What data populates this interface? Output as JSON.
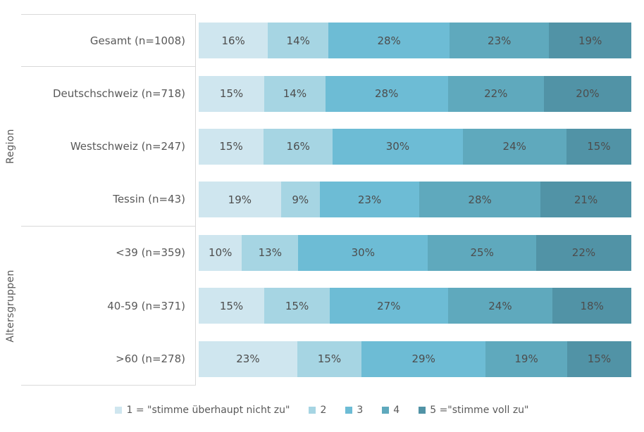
{
  "chart_data": {
    "type": "bar",
    "orientation": "horizontal",
    "stacked": true,
    "value_unit": "percent",
    "x_range": [
      0,
      100
    ],
    "grid": false,
    "legend_position": "bottom",
    "colors": [
      "#cfe6ef",
      "#a6d5e3",
      "#6dbcd5",
      "#5fa9bd",
      "#5193a6"
    ],
    "legend": [
      {
        "label": "1 = \"stimme überhaupt nicht zu\""
      },
      {
        "label": "2"
      },
      {
        "label": "3"
      },
      {
        "label": "4"
      },
      {
        "label": "5 =\"stimme voll zu\""
      }
    ],
    "groups": [
      {
        "label": "",
        "rows": [
          {
            "label": "Gesamt (n=1008)",
            "values": [
              16,
              14,
              28,
              23,
              19
            ],
            "labels": [
              "16%",
              "14%",
              "28%",
              "23%",
              "19%"
            ]
          }
        ]
      },
      {
        "label": "Region",
        "rows": [
          {
            "label": "Deutschschweiz (n=718)",
            "values": [
              15,
              14,
              28,
              22,
              20
            ],
            "labels": [
              "15%",
              "14%",
              "28%",
              "22%",
              "20%"
            ]
          },
          {
            "label": "Westschweiz (n=247)",
            "values": [
              15,
              16,
              30,
              24,
              15
            ],
            "labels": [
              "15%",
              "16%",
              "30%",
              "24%",
              "15%"
            ]
          },
          {
            "label": "Tessin (n=43)",
            "values": [
              19,
              9,
              23,
              28,
              21
            ],
            "labels": [
              "19%",
              "9%",
              "23%",
              "28%",
              "21%"
            ]
          }
        ]
      },
      {
        "label": "Altersgruppen",
        "rows": [
          {
            "label": "<39 (n=359)",
            "values": [
              10,
              13,
              30,
              25,
              22
            ],
            "labels": [
              "10%",
              "13%",
              "30%",
              "25%",
              "22%"
            ]
          },
          {
            "label": "40-59 (n=371)",
            "values": [
              15,
              15,
              27,
              24,
              18
            ],
            "labels": [
              "15%",
              "15%",
              "27%",
              "24%",
              "18%"
            ]
          },
          {
            "label": ">60 (n=278)",
            "values": [
              23,
              15,
              29,
              19,
              15
            ],
            "labels": [
              "23%",
              "15%",
              "29%",
              "19%",
              "15%"
            ]
          }
        ]
      }
    ]
  }
}
